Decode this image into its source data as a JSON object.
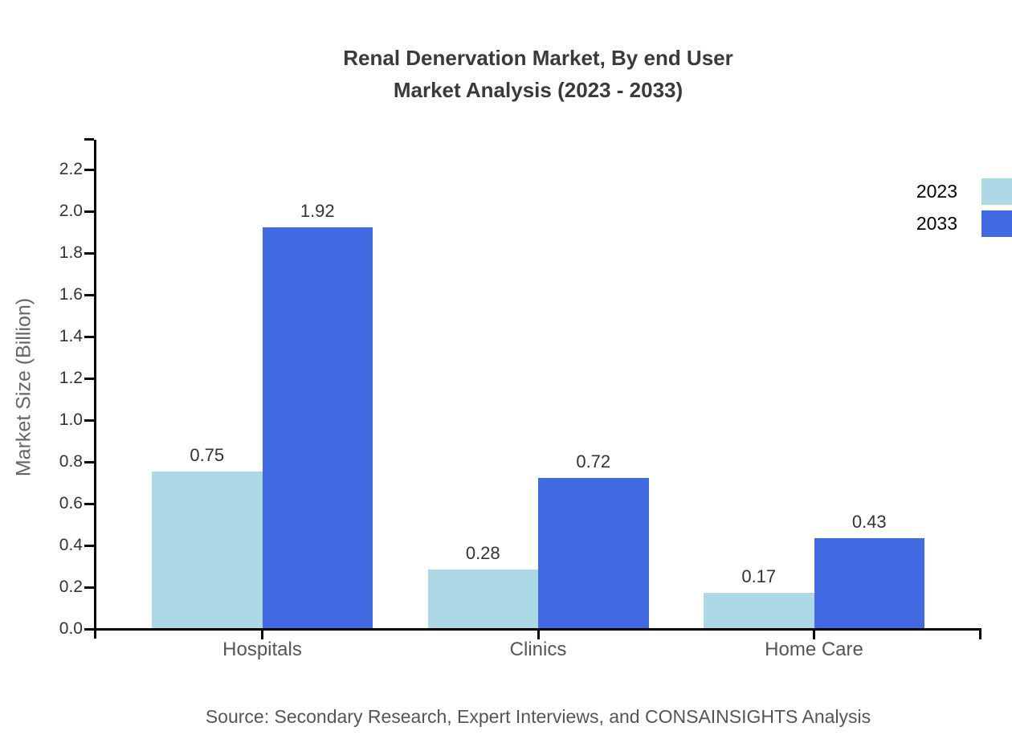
{
  "title": {
    "line1": "Renal Denervation Market, By end User",
    "line2": "Market Analysis (2023 - 2033)"
  },
  "source": "Source: Secondary Research, Expert Interviews, and CONSAINSIGHTS Analysis",
  "colors": {
    "series_2023": "#add8e6",
    "series_2033": "#4169e1",
    "axis": "#000000",
    "title_text": "#3a3a3a",
    "tick_text": "#333333",
    "category_text": "#555555",
    "axis_label_text": "#666666"
  },
  "chart_data": {
    "type": "bar",
    "title": "Renal Denervation Market, By end User Market Analysis (2023 - 2033)",
    "categories": [
      "Hospitals",
      "Clinics",
      "Home Care"
    ],
    "series": [
      {
        "name": "2023",
        "color": "#add8e6",
        "values": [
          0.75,
          0.28,
          0.17
        ]
      },
      {
        "name": "2033",
        "color": "#4169e1",
        "values": [
          1.92,
          0.72,
          0.43
        ]
      }
    ],
    "xlabel": "",
    "ylabel": "Market Size (Billion)",
    "ylim": [
      0.0,
      2.3
    ],
    "yticks": [
      0.0,
      0.2,
      0.4,
      0.6,
      0.8,
      1.0,
      1.2,
      1.4,
      1.6,
      1.8,
      2.0,
      2.2
    ],
    "grid": false,
    "legend_position": "top-right",
    "value_labels": true,
    "value_label_format": "2-decimals"
  }
}
